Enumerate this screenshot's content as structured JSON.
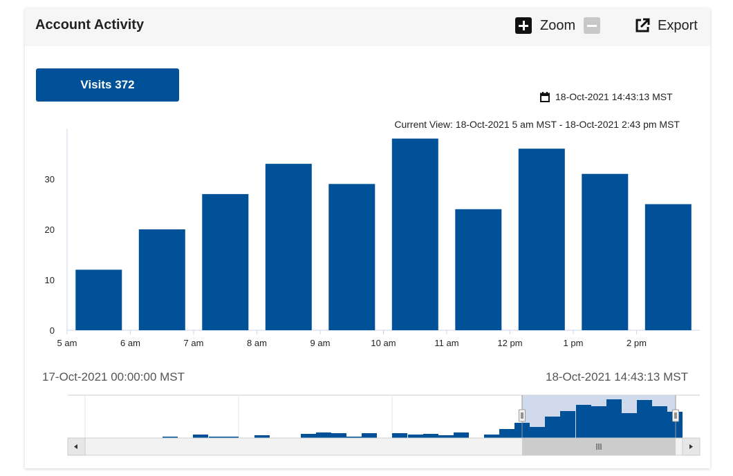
{
  "header": {
    "title": "Account Activity",
    "zoom_label": "Zoom",
    "export_label": "Export"
  },
  "visits_button": {
    "label": "Visits 372"
  },
  "timestamp": "18-Oct-2021 14:43:13 MST",
  "current_view": "Current View: 18-Oct-2021 5 am MST - 18-Oct-2021 2:43 pm MST",
  "navigator": {
    "range_start": "17-Oct-2021 00:00:00 MST",
    "range_end": "18-Oct-2021 14:43:13 MST"
  },
  "colors": {
    "bar": "#005197",
    "header_bg": "#f6f6f6",
    "navigator_mask": "#c9d3ea"
  },
  "chart_data": {
    "type": "bar",
    "categories": [
      "5 am",
      "6 am",
      "7 am",
      "8 am",
      "9 am",
      "10 am",
      "11 am",
      "12 pm",
      "1 pm",
      "2 pm"
    ],
    "values": [
      12,
      20,
      27,
      33,
      29,
      38,
      24,
      36,
      31,
      25
    ],
    "title": "",
    "xlabel": "",
    "ylabel": "",
    "yticks": [
      0,
      10,
      20,
      30
    ],
    "ylim": [
      0,
      40
    ],
    "grid": false,
    "legend": "none"
  }
}
